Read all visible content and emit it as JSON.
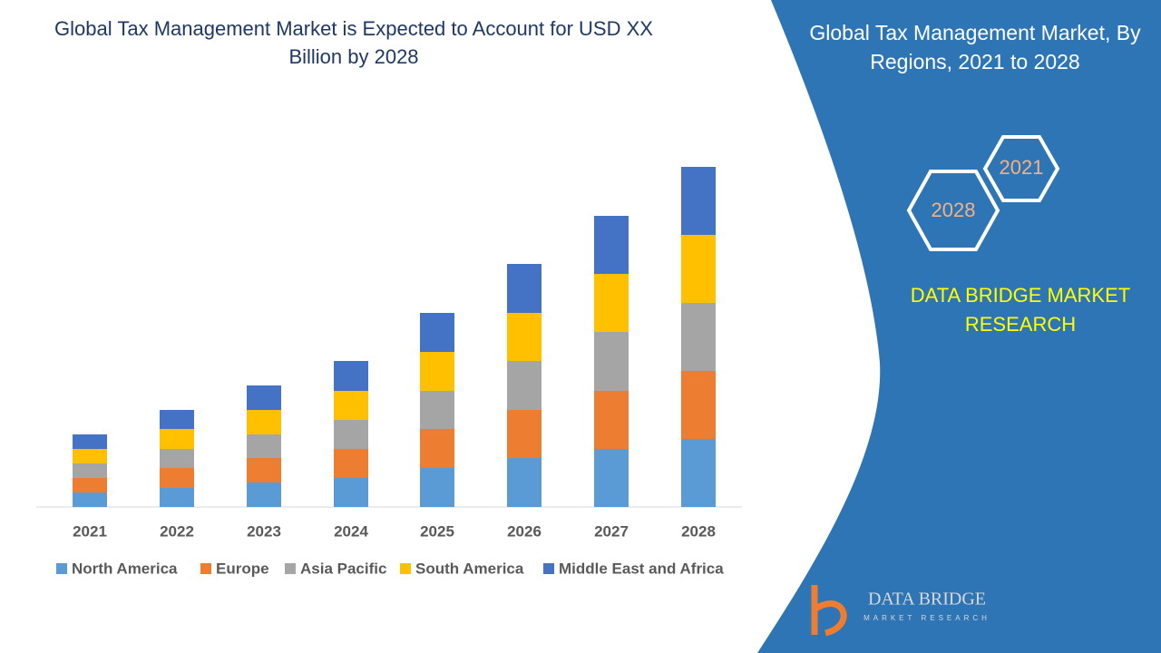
{
  "chart_data": {
    "type": "stacked_bar",
    "title": "Global Tax Management Market is Expected to Account for USD XX Billion by 2028",
    "categories": [
      "2021",
      "2022",
      "2023",
      "2024",
      "2025",
      "2026",
      "2027",
      "2028"
    ],
    "series": [
      {
        "name": "North America",
        "color": "#5b9bd5",
        "values": [
          1.6,
          2.1,
          2.7,
          3.2,
          4.3,
          5.4,
          6.4,
          7.5
        ]
      },
      {
        "name": "Europe",
        "color": "#ed7d31",
        "values": [
          1.6,
          2.2,
          2.7,
          3.2,
          4.3,
          5.3,
          6.4,
          7.5
        ]
      },
      {
        "name": "Asia Pacific",
        "color": "#a5a5a5",
        "values": [
          1.6,
          2.1,
          2.6,
          3.2,
          4.2,
          5.4,
          6.5,
          7.5
        ]
      },
      {
        "name": "South America",
        "color": "#ffc000",
        "values": [
          1.6,
          2.2,
          2.7,
          3.2,
          4.3,
          5.3,
          6.4,
          7.5
        ]
      },
      {
        "name": "Middle East and Africa",
        "color": "#4472c4",
        "values": [
          1.6,
          2.1,
          2.7,
          3.3,
          4.3,
          5.4,
          6.4,
          7.5
        ]
      }
    ]
  },
  "panel": {
    "title": "Global Tax Management Market, By Regions, 2021 to 2028",
    "hex_labels": [
      "2021",
      "2028"
    ],
    "brand": "DATA BRIDGE MARKET RESEARCH",
    "logo_name": "DATA BRIDGE",
    "logo_tagline": "MARKET RESEARCH"
  }
}
